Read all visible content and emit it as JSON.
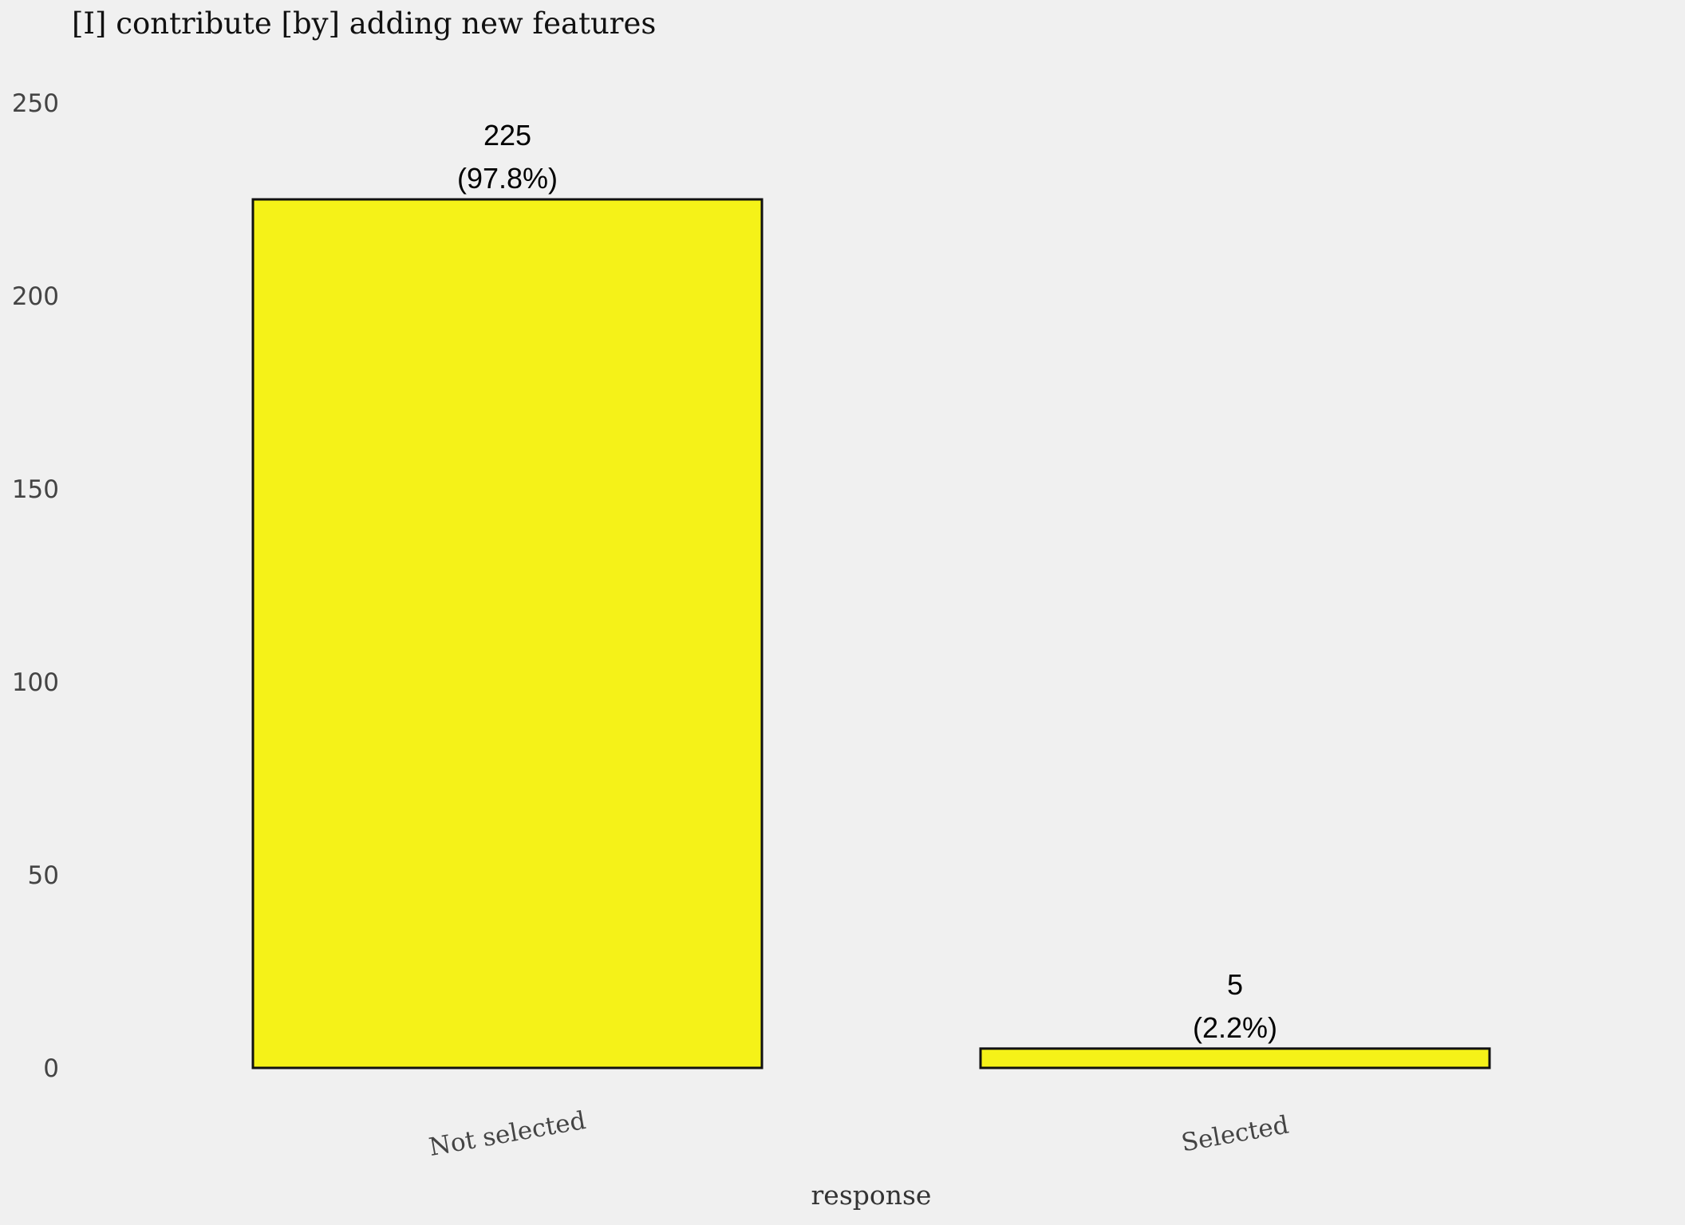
{
  "chart_data": {
    "type": "bar",
    "title": "[I] contribute [by] adding new features",
    "xlabel": "response",
    "ylabel": "",
    "categories": [
      "Not selected",
      "Selected"
    ],
    "values": [
      225,
      5
    ],
    "percent_labels": [
      "(97.8%)",
      "(2.2%)"
    ],
    "ylim": [
      0,
      250
    ],
    "yticks": [
      "0",
      "50",
      "100",
      "150",
      "200",
      "250"
    ],
    "grid": false,
    "legend": "none",
    "bar_color": "#f5f218",
    "background_color": "#f0f0f0"
  }
}
